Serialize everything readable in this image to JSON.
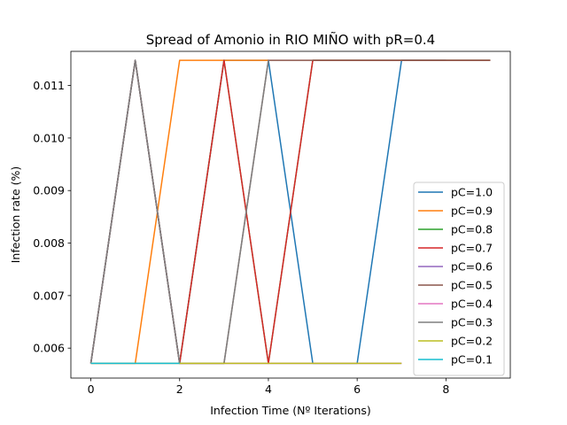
{
  "chart_data": {
    "type": "line",
    "title": "Spread of Amonio in RIO MIÑO with pR=0.4",
    "xlabel": "Infection Time (Nº Iterations)",
    "ylabel": "Infection rate (%)",
    "xlim": [
      -0.45,
      9.45
    ],
    "ylim": [
      0.00543,
      0.01165
    ],
    "xticks": [
      0,
      2,
      4,
      6,
      8
    ],
    "yticks": [
      0.006,
      0.007,
      0.008,
      0.009,
      0.01,
      0.011
    ],
    "ytick_labels": [
      "0.006",
      "0.007",
      "0.008",
      "0.009",
      "0.010",
      "0.011"
    ],
    "grid": false,
    "legend_position": "lower right",
    "series": [
      {
        "name": "pC=1.0",
        "color": "#1f77b4",
        "x": [
          0,
          1,
          2,
          3,
          4,
          5,
          6,
          7,
          8
        ],
        "y": [
          0.00571,
          0.01148,
          0.00571,
          0.01148,
          0.01148,
          0.00571,
          0.00571,
          0.01148,
          0.01148
        ]
      },
      {
        "name": "pC=0.9",
        "color": "#ff7f0e",
        "x": [
          0,
          1,
          2,
          3,
          4
        ],
        "y": [
          0.00571,
          0.00571,
          0.01148,
          0.01148,
          0.01148
        ]
      },
      {
        "name": "pC=0.8",
        "color": "#2ca02c",
        "x": [
          0,
          1,
          2,
          3,
          4,
          5,
          6,
          7,
          8,
          9
        ],
        "y": [
          0.00571,
          0.01148,
          0.00571,
          0.01148,
          0.00571,
          0.01148,
          0.01148,
          0.01148,
          0.01148,
          0.01148
        ]
      },
      {
        "name": "pC=0.7",
        "color": "#d62728",
        "x": [
          0,
          1,
          2,
          3,
          4,
          5,
          6,
          7,
          8,
          9
        ],
        "y": [
          0.00571,
          0.01148,
          0.00571,
          0.01148,
          0.00571,
          0.01148,
          0.01148,
          0.01148,
          0.01148,
          0.01148
        ]
      },
      {
        "name": "pC=0.6",
        "color": "#9467bd",
        "x": [
          0,
          1,
          2,
          3,
          4,
          5,
          6,
          7
        ],
        "y": [
          0.00571,
          0.01148,
          0.00571,
          0.00571,
          0.00571,
          0.00571,
          0.00571,
          0.00571
        ]
      },
      {
        "name": "pC=0.5",
        "color": "#8c564b",
        "x": [
          0,
          1,
          2,
          3,
          4,
          5,
          6,
          7,
          8,
          9
        ],
        "y": [
          0.00571,
          0.01148,
          0.00571,
          0.00571,
          0.01148,
          0.01148,
          0.01148,
          0.01148,
          0.01148,
          0.01148
        ]
      },
      {
        "name": "pC=0.4",
        "color": "#e377c2",
        "x": [
          0,
          1,
          2,
          3,
          4,
          5,
          6,
          7
        ],
        "y": [
          0.00571,
          0.00571,
          0.00571,
          0.00571,
          0.00571,
          0.00571,
          0.00571,
          0.00571
        ]
      },
      {
        "name": "pC=0.3",
        "color": "#7f7f7f",
        "x": [
          0,
          1,
          2,
          3,
          4
        ],
        "y": [
          0.00571,
          0.01148,
          0.00571,
          0.00571,
          0.01148
        ]
      },
      {
        "name": "pC=0.2",
        "color": "#bcbd22",
        "x": [
          0,
          1,
          2,
          3,
          4,
          5,
          6,
          7
        ],
        "y": [
          0.00571,
          0.00571,
          0.00571,
          0.00571,
          0.00571,
          0.00571,
          0.00571,
          0.00571
        ]
      },
      {
        "name": "pC=0.1",
        "color": "#17becf",
        "x": [
          0,
          1,
          2
        ],
        "y": [
          0.00571,
          0.00571,
          0.00571
        ]
      }
    ]
  }
}
